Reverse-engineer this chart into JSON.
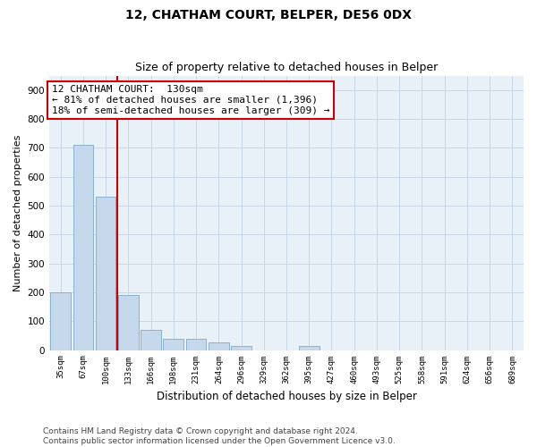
{
  "title": "12, CHATHAM COURT, BELPER, DE56 0DX",
  "subtitle": "Size of property relative to detached houses in Belper",
  "xlabel": "Distribution of detached houses by size in Belper",
  "ylabel": "Number of detached properties",
  "categories": [
    "35sqm",
    "67sqm",
    "100sqm",
    "133sqm",
    "166sqm",
    "198sqm",
    "231sqm",
    "264sqm",
    "296sqm",
    "329sqm",
    "362sqm",
    "395sqm",
    "427sqm",
    "460sqm",
    "493sqm",
    "525sqm",
    "558sqm",
    "591sqm",
    "624sqm",
    "656sqm",
    "689sqm"
  ],
  "values": [
    200,
    710,
    530,
    190,
    70,
    40,
    40,
    25,
    15,
    0,
    0,
    15,
    0,
    0,
    0,
    0,
    0,
    0,
    0,
    0,
    0
  ],
  "bar_color": "#c5d8ec",
  "bar_edge_color": "#7aaac8",
  "property_line_x": 2.5,
  "property_line_color": "#cc0000",
  "annotation_line1": "12 CHATHAM COURT:  130sqm",
  "annotation_line2": "← 81% of detached houses are smaller (1,396)",
  "annotation_line3": "18% of semi-detached houses are larger (309) →",
  "annotation_box_color": "#cc0000",
  "ylim": [
    0,
    950
  ],
  "yticks": [
    0,
    100,
    200,
    300,
    400,
    500,
    600,
    700,
    800,
    900
  ],
  "grid_color": "#c8d8e8",
  "background_color": "#e8f0f8",
  "footer": "Contains HM Land Registry data © Crown copyright and database right 2024.\nContains public sector information licensed under the Open Government Licence v3.0.",
  "title_fontsize": 10,
  "subtitle_fontsize": 9,
  "annotation_fontsize": 8,
  "footer_fontsize": 6.5,
  "ylabel_fontsize": 8,
  "xlabel_fontsize": 8.5
}
